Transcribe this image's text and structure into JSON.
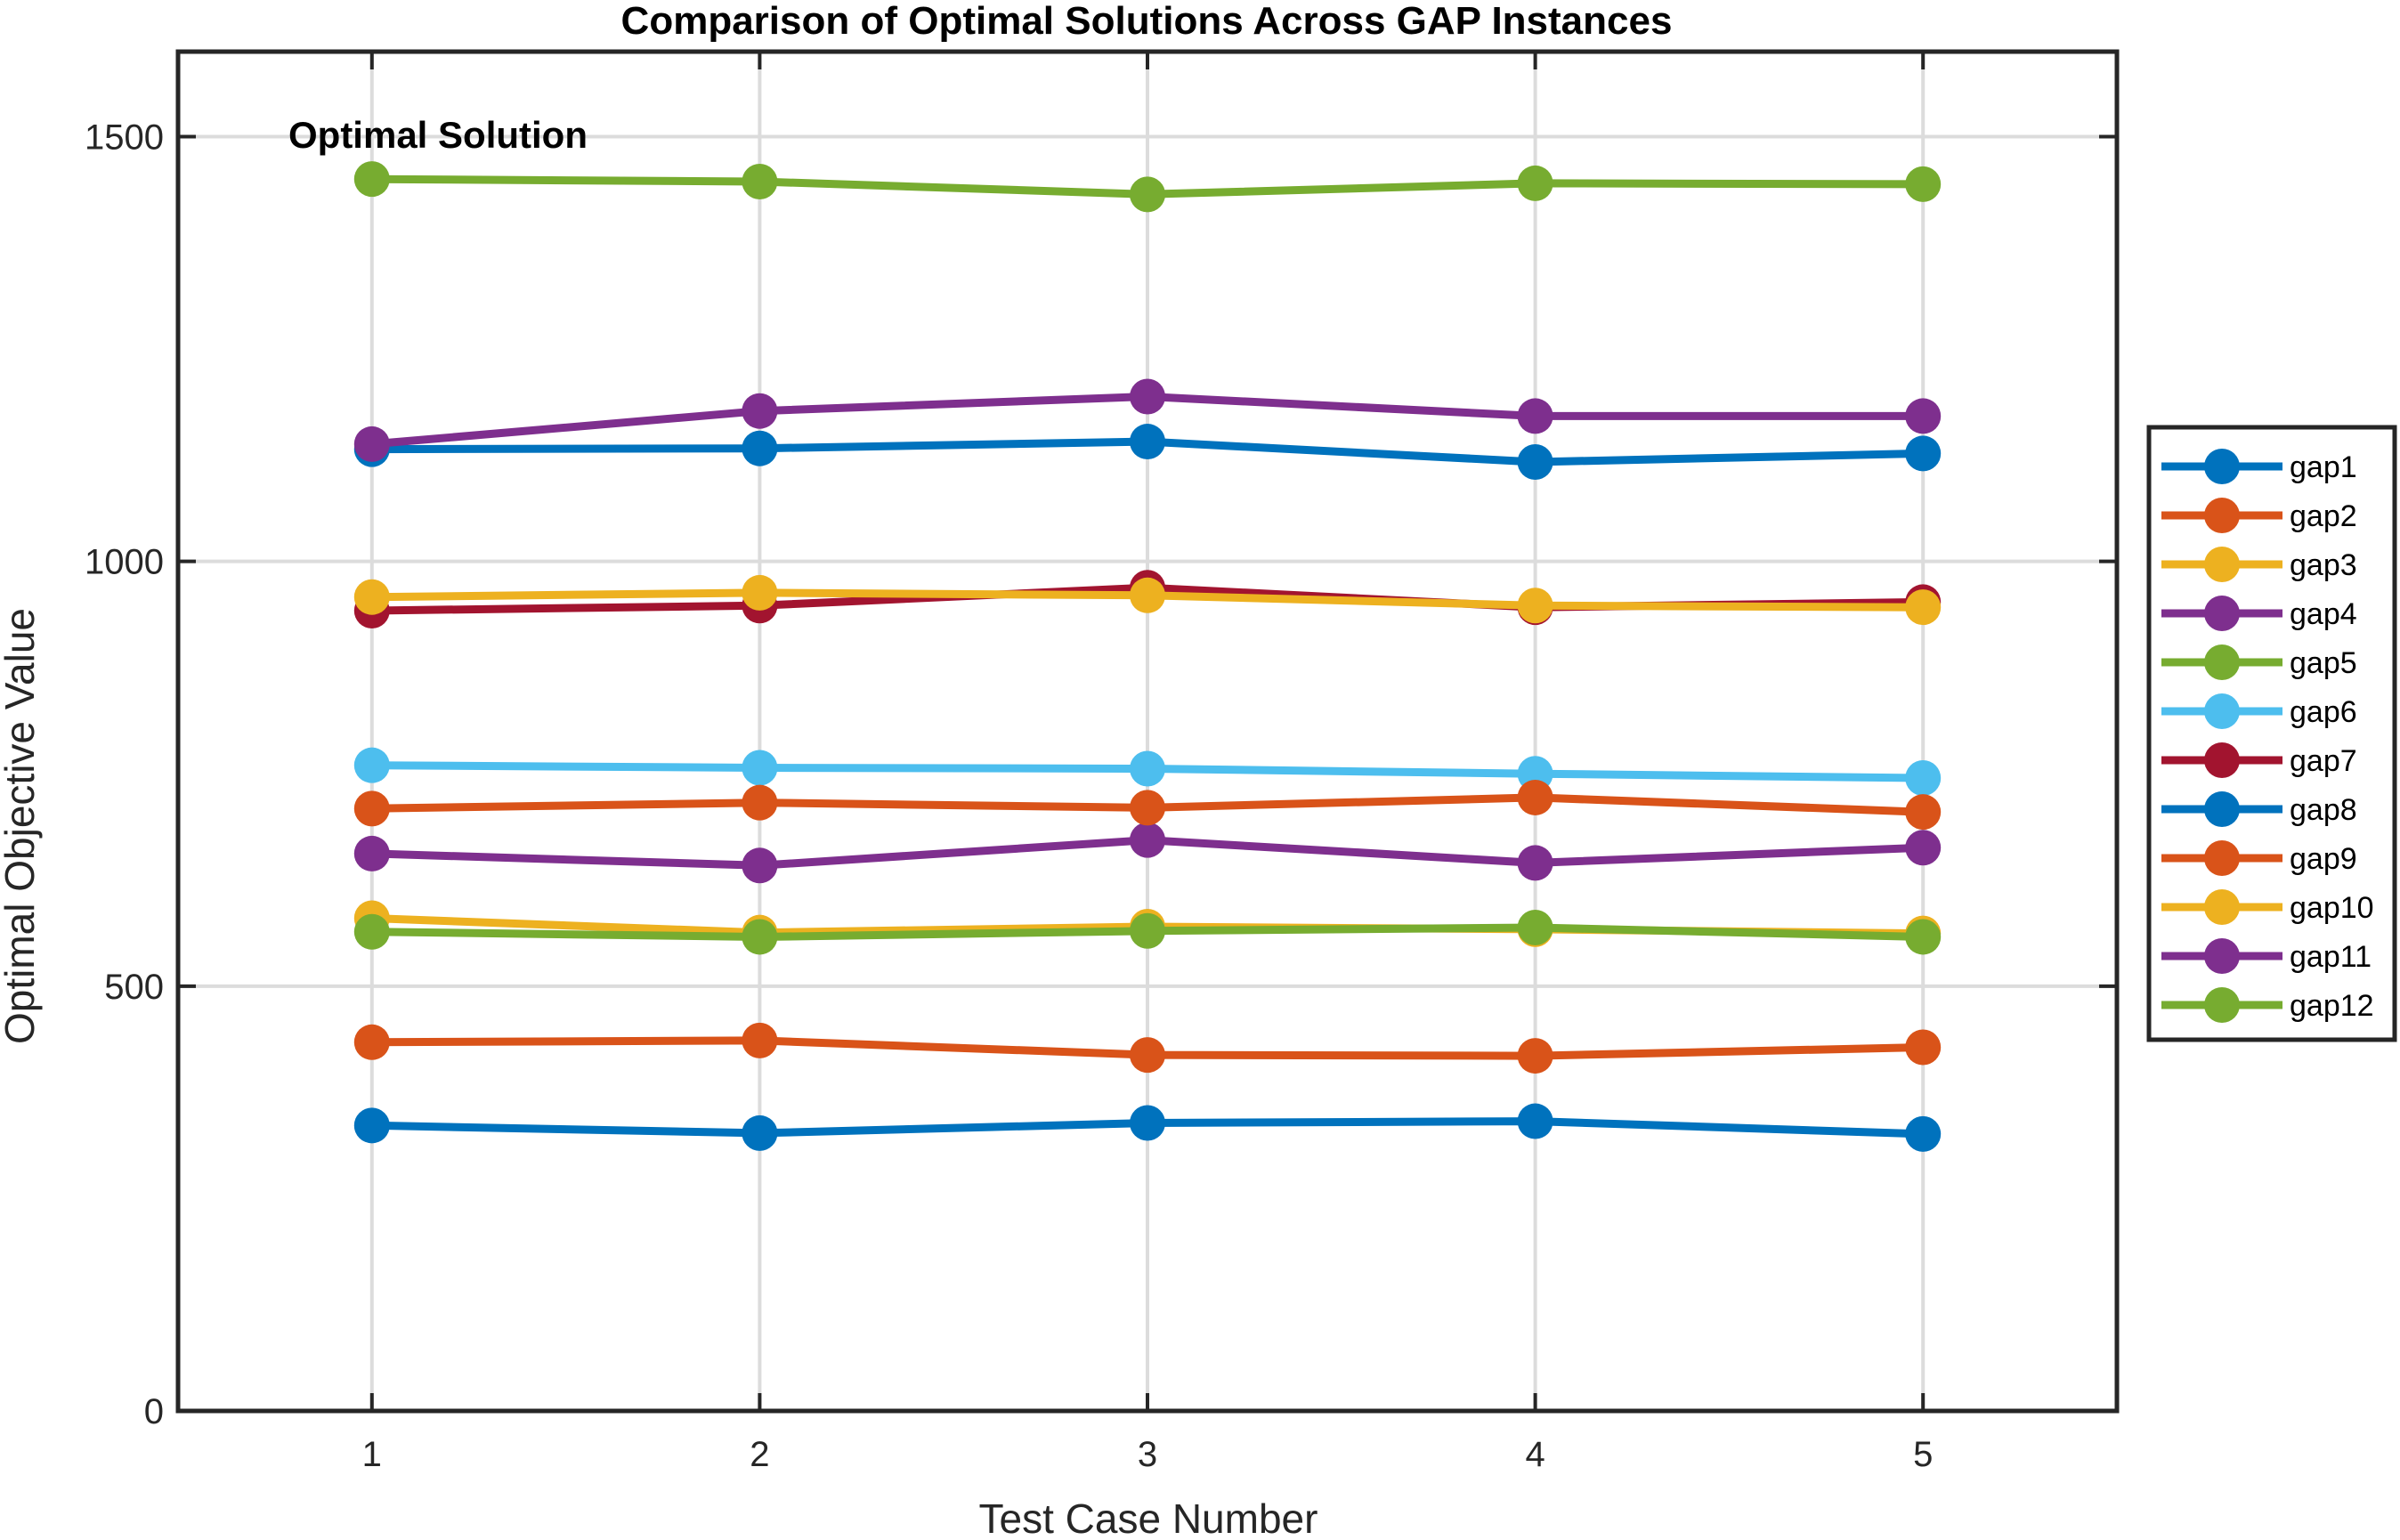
{
  "chart_data": {
    "type": "line",
    "title": "Comparison of Optimal Solutions Across GAP Instances",
    "xlabel": "Test Case Number",
    "ylabel": "Optimal Objective Value",
    "annotation": "Optimal Solution",
    "x": [
      1,
      2,
      3,
      4,
      5
    ],
    "xlim": [
      0.5,
      5.5
    ],
    "ylim": [
      0,
      1600
    ],
    "xticks": [
      1,
      2,
      3,
      4,
      5
    ],
    "yticks": [
      0,
      500,
      1000,
      1500
    ],
    "grid": true,
    "legend_position": "outside-right",
    "series": [
      {
        "name": "gap1",
        "color": "#0072BD",
        "values": [
          336,
          327,
          339,
          341,
          326
        ]
      },
      {
        "name": "gap2",
        "color": "#D95319",
        "values": [
          434,
          436,
          419,
          418,
          428
        ]
      },
      {
        "name": "gap3",
        "color": "#EDB120",
        "values": [
          580,
          563,
          570,
          567,
          562
        ]
      },
      {
        "name": "gap4",
        "color": "#7E2F8E",
        "values": [
          656,
          642,
          672,
          645,
          663
        ]
      },
      {
        "name": "gap5",
        "color": "#77AC30",
        "values": [
          564,
          558,
          565,
          569,
          558
        ]
      },
      {
        "name": "gap6",
        "color": "#4DBEEE",
        "values": [
          760,
          757,
          756,
          750,
          745
        ]
      },
      {
        "name": "gap7",
        "color": "#A2142F",
        "values": [
          942,
          948,
          969,
          946,
          952
        ]
      },
      {
        "name": "gap8",
        "color": "#0072BD",
        "values": [
          1132,
          1133,
          1141,
          1117,
          1127
        ]
      },
      {
        "name": "gap9",
        "color": "#D95319",
        "values": [
          709,
          716,
          710,
          722,
          705
        ]
      },
      {
        "name": "gap10",
        "color": "#EDB120",
        "values": [
          958,
          963,
          960,
          948,
          946
        ]
      },
      {
        "name": "gap11",
        "color": "#7E2F8E",
        "values": [
          1138,
          1177,
          1194,
          1171,
          1171
        ]
      },
      {
        "name": "gap12",
        "color": "#77AC30",
        "values": [
          1450,
          1447,
          1432,
          1445,
          1444
        ]
      }
    ]
  }
}
